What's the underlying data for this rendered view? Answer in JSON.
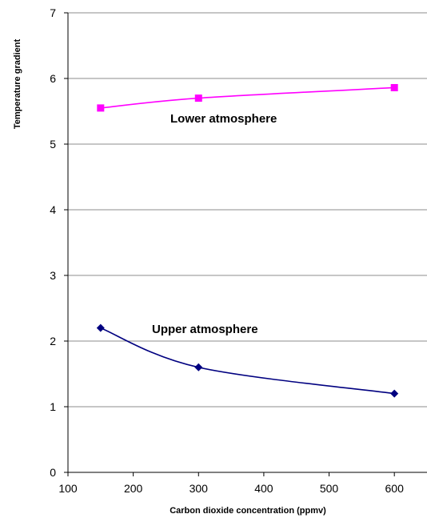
{
  "chart_data": {
    "type": "line",
    "xlabel": "Carbon dioxide concentration (ppmv)",
    "ylabel": "Temperature gradient",
    "xlim": [
      100,
      650
    ],
    "ylim": [
      0,
      7
    ],
    "x_ticks": [
      100,
      200,
      300,
      400,
      500,
      600
    ],
    "y_ticks": [
      0,
      1,
      2,
      3,
      4,
      5,
      6,
      7
    ],
    "grid": "horizontal",
    "series": [
      {
        "name": "Lower atmosphere",
        "x": [
          150,
          300,
          600
        ],
        "values": [
          5.55,
          5.7,
          5.86
        ],
        "color": "#ff00ff",
        "marker": "square"
      },
      {
        "name": "Upper atmosphere",
        "x": [
          150,
          300,
          600
        ],
        "values": [
          2.2,
          1.6,
          1.2
        ],
        "color": "#000080",
        "marker": "diamond"
      }
    ]
  }
}
